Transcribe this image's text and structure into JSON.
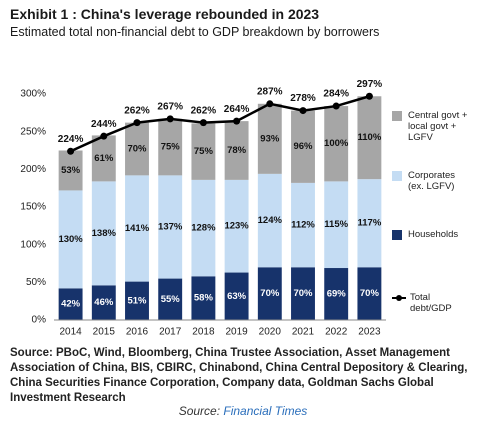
{
  "chart_data": {
    "type": "bar",
    "stacked": true,
    "title": "Exhibit 1 : China's leverage rebounded in 2023",
    "subtitle": "Estimated total non-financial debt to GDP breakdown by borrowers",
    "categories": [
      "2014",
      "2015",
      "2016",
      "2017",
      "2018",
      "2019",
      "2020",
      "2021",
      "2022",
      "2023"
    ],
    "series": [
      {
        "name": "Households",
        "color": "#17336b",
        "label_color": "#ffffff",
        "values": [
          42,
          46,
          51,
          55,
          58,
          63,
          70,
          70,
          69,
          70
        ],
        "value_labels": [
          "42%",
          "46%",
          "51%",
          "55%",
          "58%",
          "63%",
          "70%",
          "70%",
          "69%",
          "70%"
        ]
      },
      {
        "name": "Corporates (ex. LGFV)",
        "color": "#c4dcf3",
        "label_color": "#111111",
        "values": [
          130,
          138,
          141,
          137,
          128,
          123,
          124,
          112,
          115,
          117
        ],
        "value_labels": [
          "130%",
          "138%",
          "141%",
          "137%",
          "128%",
          "123%",
          "124%",
          "112%",
          "115%",
          "117%"
        ]
      },
      {
        "name": "Central govt + local govt + LGFV",
        "color": "#a6a6a6",
        "label_color": "#111111",
        "values": [
          53,
          61,
          70,
          75,
          75,
          78,
          93,
          96,
          100,
          110
        ],
        "value_labels": [
          "53%",
          "61%",
          "70%",
          "75%",
          "75%",
          "78%",
          "93%",
          "96%",
          "100%",
          "110%"
        ]
      },
      {
        "name": "Total debt/GDP",
        "type": "line",
        "color": "#000000",
        "label_color": "#111111",
        "values": [
          224,
          244,
          262,
          267,
          262,
          264,
          287,
          278,
          284,
          297
        ],
        "value_labels": [
          "224%",
          "244%",
          "262%",
          "267%",
          "262%",
          "264%",
          "287%",
          "278%",
          "284%",
          "297%"
        ]
      }
    ],
    "ylim": [
      0,
      300
    ],
    "yticks": [
      {
        "value": 0,
        "label": "0%"
      },
      {
        "value": 50,
        "label": "50%"
      },
      {
        "value": 100,
        "label": "100%"
      },
      {
        "value": 150,
        "label": "150%"
      },
      {
        "value": 200,
        "label": "200%"
      },
      {
        "value": 250,
        "label": "250%"
      },
      {
        "value": 300,
        "label": "300%"
      }
    ],
    "grid": false,
    "legend": "right",
    "source": "Source: PBoC, Wind, Bloomberg, China Trustee Association, Asset Management Association of China, BIS, CBIRC, Chinabond, China Central Depository & Clearing, China Securities Finance Corporation, Company data, Goldman Sachs Global Investment Research",
    "caption_prefix": "Source:",
    "caption_link": "Financial Times"
  }
}
